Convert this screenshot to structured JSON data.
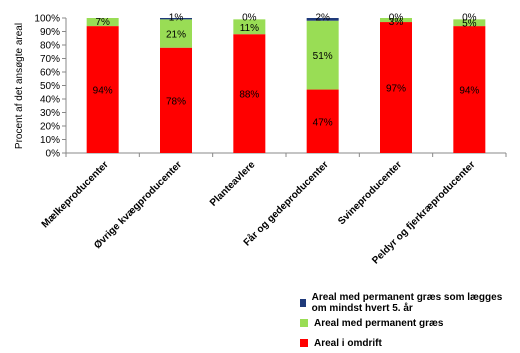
{
  "chart_data": {
    "type": "bar",
    "stacked": true,
    "categories": [
      "Mælkeproducenter",
      "Øvrige kvægproducenter",
      "Planteavlere",
      "Får og gedeproducenter",
      "Svineproducenter",
      "Peldyr og fjerkræproducenter"
    ],
    "series": [
      {
        "name": "Areal i omdrift",
        "color": "#ff0000",
        "values": [
          94,
          78,
          88,
          47,
          97,
          94
        ],
        "labels": [
          "94%",
          "78%",
          "88%",
          "47%",
          "97%",
          "94%"
        ]
      },
      {
        "name": "Areal med permanent græs",
        "color": "#99dd55",
        "values": [
          7,
          21,
          11,
          51,
          3,
          5
        ],
        "labels": [
          "7%",
          "21%",
          "11%",
          "51%",
          "3%",
          "5%"
        ]
      },
      {
        "name": "Areal med permanent græs som lægges om mindst hvert 5. år",
        "color": "#1f3a7a",
        "values": [
          0,
          1,
          0,
          2,
          0,
          0
        ],
        "labels": [
          "",
          "1%",
          "0%",
          "2%",
          "0%",
          "0%"
        ]
      }
    ],
    "ylabel": "Procent af det ansøgte areal",
    "ylim": [
      0,
      100
    ],
    "yticks": [
      0,
      10,
      20,
      30,
      40,
      50,
      60,
      70,
      80,
      90,
      100
    ],
    "ytick_labels": [
      "0%",
      "10%",
      "20%",
      "30%",
      "40%",
      "50%",
      "60%",
      "70%",
      "80%",
      "90%",
      "100%"
    ],
    "grid": false,
    "legend_position": "bottom"
  },
  "legend": {
    "items": [
      {
        "label": "Areal med permanent græs som lægges om mindst hvert 5. år",
        "color": "#1f3a7a"
      },
      {
        "label": "Areal med permanent græs",
        "color": "#99dd55"
      },
      {
        "label": "Areal i omdrift",
        "color": "#ff0000"
      }
    ]
  }
}
